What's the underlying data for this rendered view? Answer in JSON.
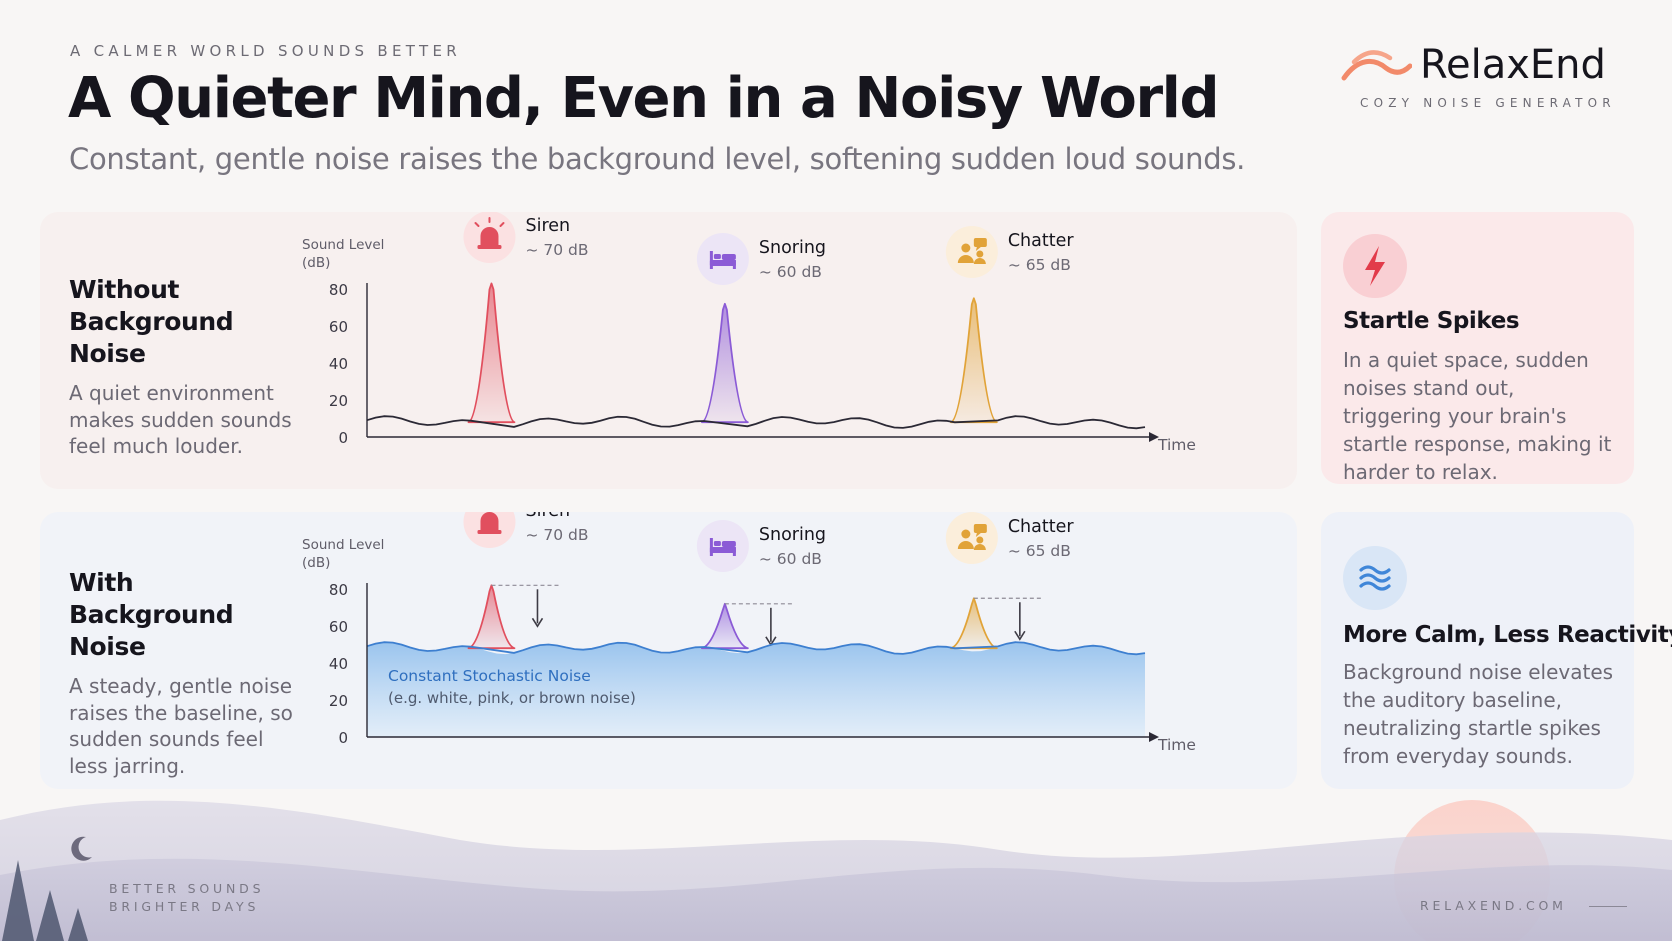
{
  "header": {
    "eyebrow": "A CALMER WORLD SOUNDS BETTER",
    "title": "A Quieter Mind, Even in a Noisy World",
    "subtitle": "Constant, gentle noise raises the background level, softening sudden loud sounds."
  },
  "brand": {
    "name": "RelaxEnd",
    "tagline": "COZY NOISE GENERATOR",
    "logo_icon": "wave-logo-icon"
  },
  "panels": [
    {
      "title_line1": "Without",
      "title_line2": "Background Noise",
      "description": "A quiet environment makes sudden sounds feel much louder."
    },
    {
      "title_line1": "With",
      "title_line2": "Background Noise",
      "description": "A steady, gentle noise raises the baseline, so sudden sounds feel less jarring."
    }
  ],
  "callouts": [
    {
      "icon": "lightning-icon",
      "title": "Startle Spikes",
      "description": "In a quiet space, sudden noises stand out, triggering your brain's startle response, making it harder to relax.",
      "color": "#e23b4a"
    },
    {
      "icon": "waves-icon",
      "title": "More Calm, Less Reactivity",
      "description": "Background noise elevates the auditory baseline, neutralizing startle spikes from everyday sounds.",
      "color": "#3f86d8"
    }
  ],
  "chart_data": [
    {
      "type": "line",
      "ylabel": "Sound Level (dB)",
      "ylabel_line1": "Sound Level",
      "ylabel_line2": "(dB)",
      "xlabel": "Time",
      "yticks": [
        0,
        20,
        40,
        60,
        80
      ],
      "ylim": [
        0,
        80
      ],
      "baseline_db": 8,
      "events": [
        {
          "name": "Siren",
          "label": "~ 70 dB",
          "icon": "siren-icon",
          "x": 0.16,
          "peak_db": 83,
          "color": "#e14f5e",
          "icon_bg": "#fbe1e2"
        },
        {
          "name": "Snoring",
          "label": "~ 60 dB",
          "icon": "bed-icon",
          "x": 0.46,
          "peak_db": 72,
          "color": "#8b5bd6",
          "icon_bg": "#ece5f6"
        },
        {
          "name": "Chatter",
          "label": "~ 65 dB",
          "icon": "people-chat-icon",
          "x": 0.78,
          "peak_db": 75,
          "color": "#e1a338",
          "icon_bg": "#fbeedb"
        }
      ]
    },
    {
      "type": "area",
      "ylabel": "Sound Level (dB)",
      "ylabel_line1": "Sound Level",
      "ylabel_line2": "(dB)",
      "xlabel": "Time",
      "yticks": [
        0,
        20,
        40,
        60,
        80
      ],
      "ylim": [
        0,
        80
      ],
      "baseline_db": 48,
      "noise_label": "Constant Stochastic Noise",
      "noise_sublabel": "(e.g. white, pink, or brown noise)",
      "events": [
        {
          "name": "Siren",
          "label": "~ 70 dB",
          "icon": "siren-icon",
          "x": 0.16,
          "peak_db": 82,
          "color": "#e14f5e",
          "icon_bg": "#fbe1e2"
        },
        {
          "name": "Snoring",
          "label": "~ 60 dB",
          "icon": "bed-icon",
          "x": 0.46,
          "peak_db": 72,
          "color": "#8b5bd6",
          "icon_bg": "#ece5f6"
        },
        {
          "name": "Chatter",
          "label": "~ 65 dB",
          "icon": "people-chat-icon",
          "x": 0.78,
          "peak_db": 75,
          "color": "#e1a338",
          "icon_bg": "#fbeedb"
        }
      ]
    }
  ],
  "footer": {
    "left_line1": "BETTER SOUNDS",
    "left_line2": "BRIGHTER DAYS",
    "right": "RELAXEND.COM"
  }
}
